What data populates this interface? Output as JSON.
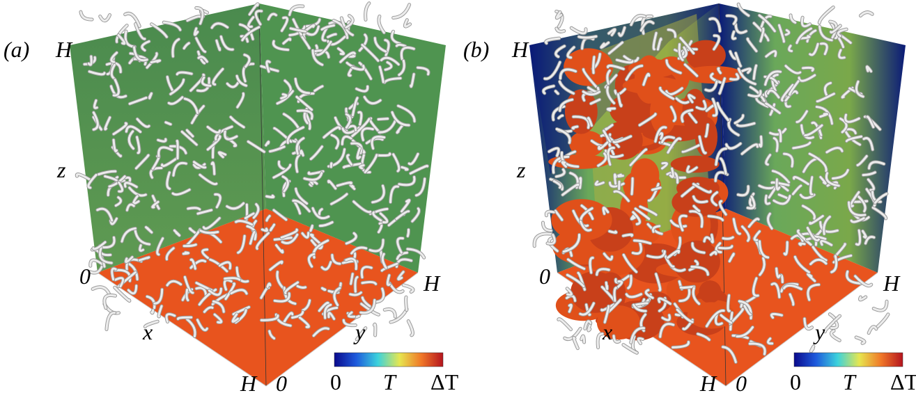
{
  "panels": [
    {
      "label": "(a)",
      "axes": {
        "z_top": "H",
        "z": "z",
        "origin": "0",
        "x": "x",
        "x_end": "H",
        "y_origin": "0",
        "y": "y",
        "y_end": "H"
      },
      "colorbar": {
        "labels": [
          "0",
          "T",
          "ΔT"
        ]
      }
    },
    {
      "label": "(b)",
      "axes": {
        "z_top": "H",
        "z": "z",
        "origin": "0",
        "x": "x",
        "x_end": "H",
        "y_origin": "0",
        "y": "y",
        "y_end": "H"
      },
      "colorbar": {
        "labels": [
          "0",
          "T",
          "ΔT"
        ]
      }
    }
  ]
}
